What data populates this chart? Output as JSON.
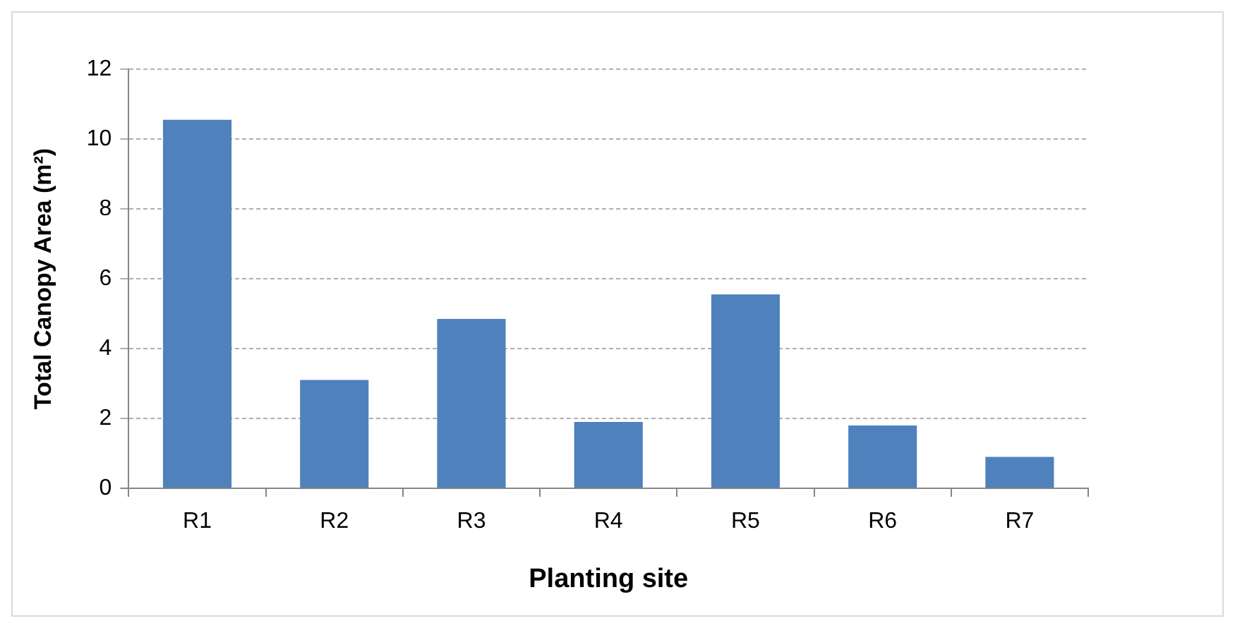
{
  "chart_data": {
    "type": "bar",
    "xlabel": "Planting site",
    "ylabel": "Total Canopy Area (m²)",
    "categories": [
      "R1",
      "R2",
      "R3",
      "R4",
      "R5",
      "R6",
      "R7"
    ],
    "values": [
      10.55,
      3.1,
      4.85,
      1.9,
      5.55,
      1.8,
      0.9
    ],
    "color": "#4f81bd",
    "ylim": [
      0,
      12
    ],
    "yticks": [
      0,
      2,
      4,
      6,
      8,
      10,
      12
    ],
    "grid": "y"
  }
}
